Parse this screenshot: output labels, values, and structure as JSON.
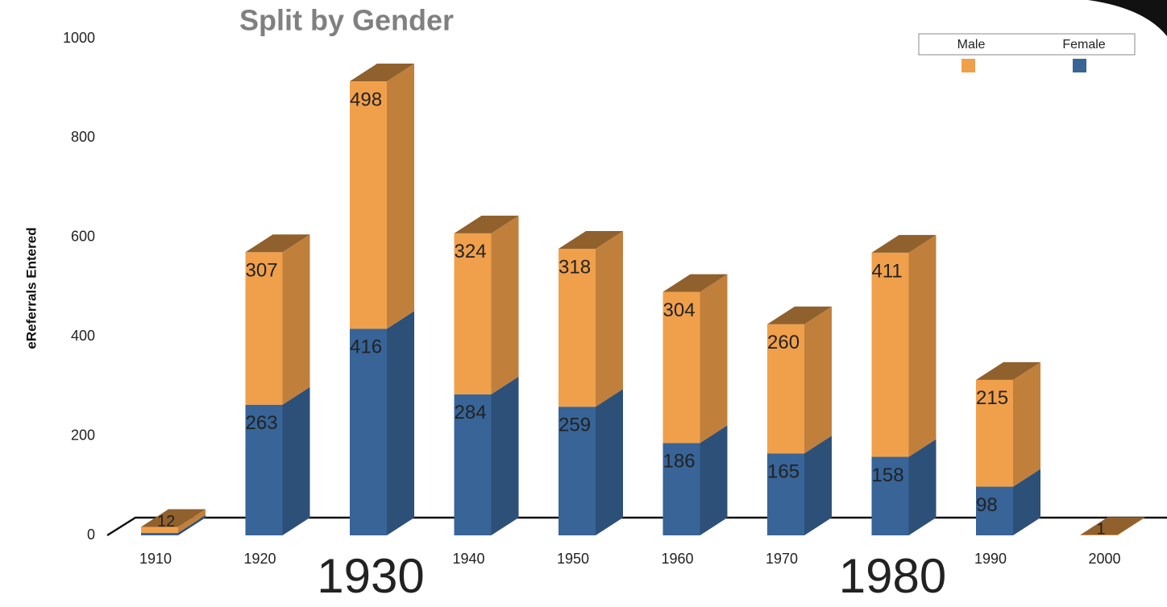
{
  "chart_data": {
    "type": "bar3d_stacked",
    "title": "Split by Gender",
    "ylabel": "eReferrals Entered",
    "categories": [
      "1910",
      "1920",
      "1930",
      "1940",
      "1950",
      "1960",
      "1970",
      "1980",
      "1990",
      "2000"
    ],
    "emphasized": [
      2,
      7
    ],
    "series": [
      {
        "name": "Female",
        "color": "#386497",
        "values": [
          5,
          263,
          416,
          284,
          259,
          186,
          165,
          158,
          98,
          0
        ],
        "value_labels": [
          null,
          "263",
          "416",
          "284",
          "259",
          "186",
          "165",
          "158",
          "98",
          null
        ]
      },
      {
        "name": "Male",
        "color": "#f0a04b",
        "values": [
          12,
          307,
          498,
          324,
          318,
          304,
          260,
          411,
          215,
          1
        ],
        "value_labels": [
          "12",
          "307",
          "498",
          "324",
          "318",
          "304",
          "260",
          "411",
          "215",
          "1"
        ]
      }
    ],
    "legend_order": [
      1,
      0
    ],
    "ylim": [
      0,
      1000
    ],
    "yticks": [
      0,
      200,
      400,
      600,
      800,
      1000
    ]
  }
}
